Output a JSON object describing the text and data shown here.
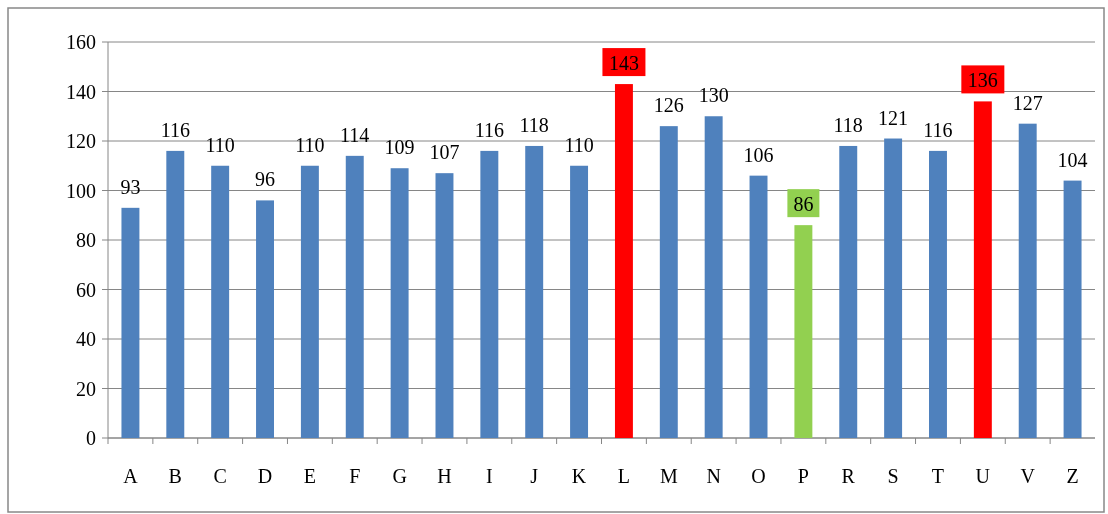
{
  "chart_data": {
    "type": "bar",
    "categories": [
      "A",
      "B",
      "C",
      "D",
      "E",
      "F",
      "G",
      "H",
      "I",
      "J",
      "K",
      "L",
      "M",
      "N",
      "O",
      "P",
      "R",
      "S",
      "T",
      "U",
      "V",
      "Z"
    ],
    "values": [
      93,
      116,
      110,
      96,
      110,
      114,
      109,
      107,
      116,
      118,
      110,
      143,
      126,
      130,
      106,
      86,
      118,
      121,
      116,
      136,
      127,
      104
    ],
    "colors": [
      "#4f81bd",
      "#4f81bd",
      "#4f81bd",
      "#4f81bd",
      "#4f81bd",
      "#4f81bd",
      "#4f81bd",
      "#4f81bd",
      "#4f81bd",
      "#4f81bd",
      "#4f81bd",
      "#ff0000",
      "#4f81bd",
      "#4f81bd",
      "#4f81bd",
      "#92d050",
      "#4f81bd",
      "#4f81bd",
      "#4f81bd",
      "#ff0000",
      "#4f81bd",
      "#4f81bd"
    ],
    "ylim": [
      0,
      160
    ],
    "yticks": [
      0,
      20,
      40,
      60,
      80,
      100,
      120,
      140,
      160
    ],
    "grid": "y",
    "data_labels": true
  }
}
